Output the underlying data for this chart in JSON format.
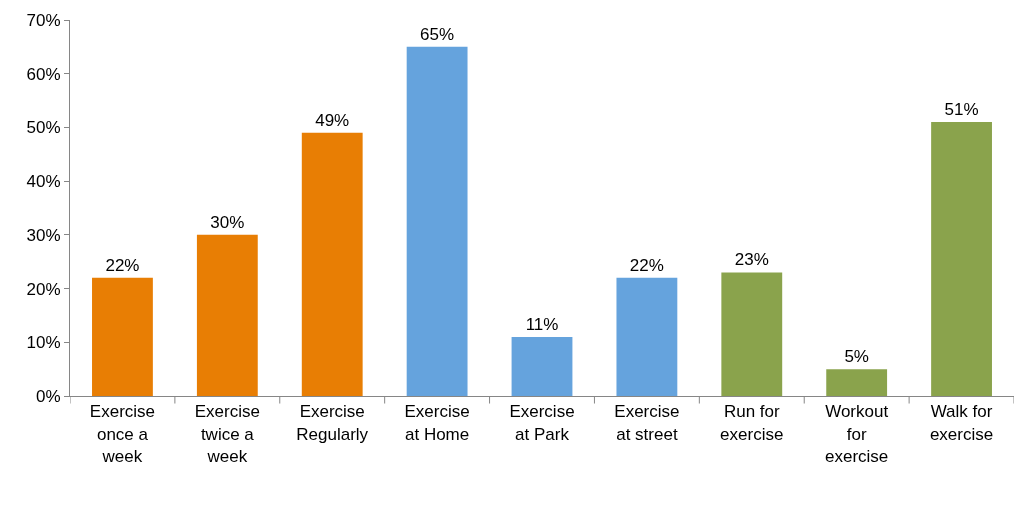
{
  "chart_data": {
    "type": "bar",
    "categories": [
      "Exercise once a week",
      "Exercise twice a week",
      "Exercise Regularly",
      "Exercise at Home",
      "Exercise at Park",
      "Exercise at street",
      "Run for exercise",
      "Workout for exercise",
      "Walk for exercise"
    ],
    "values": [
      22,
      30,
      49,
      65,
      11,
      22,
      23,
      5,
      51
    ],
    "colors": [
      "#e87e04",
      "#e87e04",
      "#e87e04",
      "#65a3dd",
      "#65a3dd",
      "#65a3dd",
      "#8aa34c",
      "#8aa34c",
      "#8aa34c"
    ],
    "value_labels": [
      "22%",
      "30%",
      "49%",
      "65%",
      "11%",
      "22%",
      "23%",
      "5%",
      "51%"
    ],
    "ylim": [
      0,
      70
    ],
    "yticks": [
      {
        "value": 0,
        "label": "0%"
      },
      {
        "value": 10,
        "label": "10%"
      },
      {
        "value": 20,
        "label": "20%"
      },
      {
        "value": 30,
        "label": "30%"
      },
      {
        "value": 40,
        "label": "40%"
      },
      {
        "value": 50,
        "label": "50%"
      },
      {
        "value": 60,
        "label": "60%"
      },
      {
        "value": 70,
        "label": "70%"
      }
    ],
    "grid": false,
    "legend": false
  }
}
